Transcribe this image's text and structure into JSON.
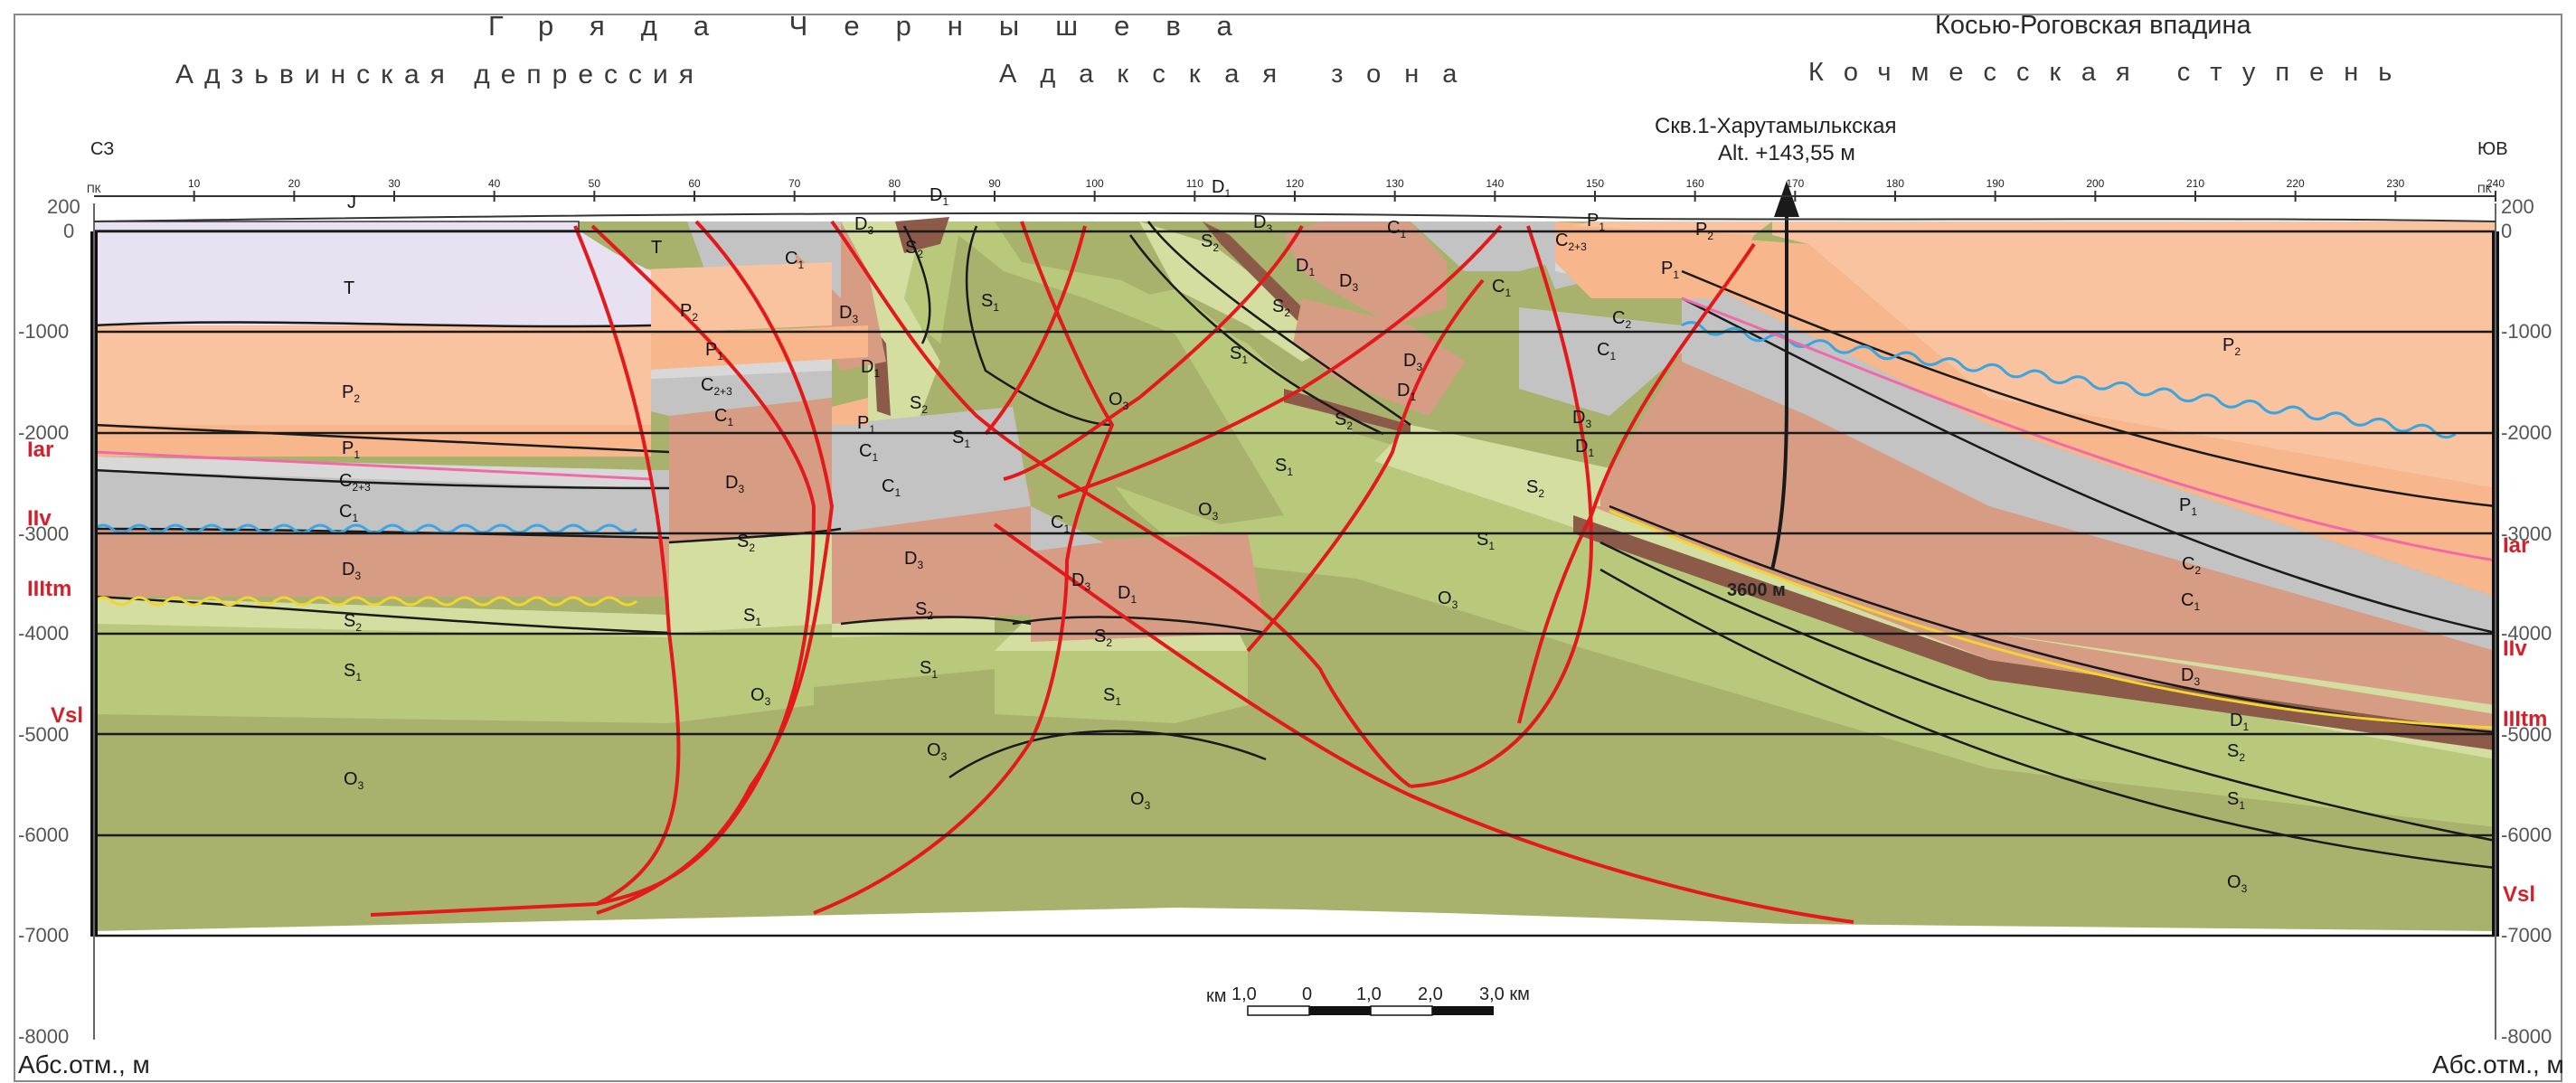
{
  "headers": {
    "ridge": "Гряда Чернышева",
    "depression_right": "Косью-Роговская впадина",
    "adzva": "Адзьвинская депрессия",
    "adak": "Адакская зона",
    "kochmes": "Кочмесская ступень"
  },
  "direction": {
    "left": "СЗ",
    "right": "ЮВ"
  },
  "well": {
    "name": "Скв.1-Харутамылькская",
    "alt": "Alt. +143,55 м",
    "depth": "3600 м"
  },
  "pk_axis": {
    "label": "ПК",
    "ticks": [
      "10",
      "20",
      "30",
      "40",
      "50",
      "60",
      "70",
      "80",
      "90",
      "100",
      "110",
      "120",
      "130",
      "140",
      "150",
      "160",
      "170",
      "180",
      "190",
      "200",
      "210",
      "220",
      "230",
      "240"
    ]
  },
  "depth_axis": {
    "labels": [
      "200",
      "0",
      "-1000",
      "-2000",
      "-3000",
      "-4000",
      "-5000",
      "-6000",
      "-7000",
      "-8000"
    ],
    "unit_label": "Абс.отм., м"
  },
  "horizons": {
    "left": [
      "Iar",
      "IIv",
      "IIItm",
      "Vsl"
    ],
    "right": [
      "Iar",
      "IIv",
      "IIItm",
      "Vsl"
    ]
  },
  "scale_bar": {
    "unit": "км",
    "labels": [
      "1,0",
      "0",
      "1,0",
      "2,0",
      "3,0 км"
    ]
  },
  "units": {
    "T": "T",
    "J": "J",
    "P2": "P",
    "P1": "P",
    "C23": "C",
    "C2": "C",
    "C1": "C",
    "D3": "D",
    "D1": "D",
    "S2": "S",
    "S1": "S",
    "O3": "O"
  },
  "colors": {
    "T": "#e7e1f1",
    "P2": "#f9c3a0",
    "P1": "#f7b68c",
    "C": "#c3c3c3",
    "D3": "#d69d84",
    "D1": "#8b5a48",
    "S2": "#d4dea0",
    "S1": "#b9c97c",
    "O3": "#a8b26c",
    "fault": "#e31a1c",
    "contour": "#1a1a1a",
    "blue_line": "#3aa5e0",
    "pink_line": "#f06aa8",
    "yellow_line": "#f3d430",
    "horizon_label": "#d4202a"
  }
}
